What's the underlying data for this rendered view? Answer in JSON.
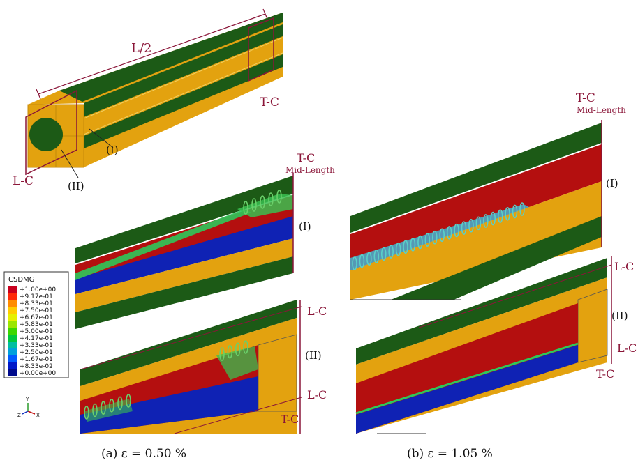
{
  "labels": {
    "half_length": "L/2",
    "tc": "T-C",
    "lc": "L-C",
    "mid_length": "Mid-Length",
    "region_i": "(I)",
    "region_ii": "(II)"
  },
  "legend": {
    "title": "CSDMG",
    "entries": [
      {
        "value": "+1.00e+00",
        "color": "#c8001e"
      },
      {
        "value": "+9.17e-01",
        "color": "#ff2a0a"
      },
      {
        "value": "+8.33e-01",
        "color": "#ff8c00"
      },
      {
        "value": "+7.50e-01",
        "color": "#ffcc00"
      },
      {
        "value": "+6.67e-01",
        "color": "#e6f000"
      },
      {
        "value": "+5.83e-01",
        "color": "#9be600"
      },
      {
        "value": "+5.00e-01",
        "color": "#3cd700"
      },
      {
        "value": "+4.17e-01",
        "color": "#00c83c"
      },
      {
        "value": "+3.33e-01",
        "color": "#00bea0"
      },
      {
        "value": "+2.50e-01",
        "color": "#00a0dc"
      },
      {
        "value": "+1.67e-01",
        "color": "#005aff"
      },
      {
        "value": "+8.33e-02",
        "color": "#0018c8"
      },
      {
        "value": "+0.00e+00",
        "color": "#000a8c"
      }
    ]
  },
  "axes": {
    "y": "Y",
    "z": "Z",
    "x": "X"
  },
  "captions": {
    "a": "(a) ε = 0.50 %",
    "b": "(b) ε = 1.05 %"
  },
  "colors": {
    "matrix_green": "#1c5a16",
    "fiber_yellow": "#e3a20f",
    "damage_red": "#b40f0f",
    "damage_blue": "#0f22b4",
    "cut_line": "#8a1538"
  }
}
